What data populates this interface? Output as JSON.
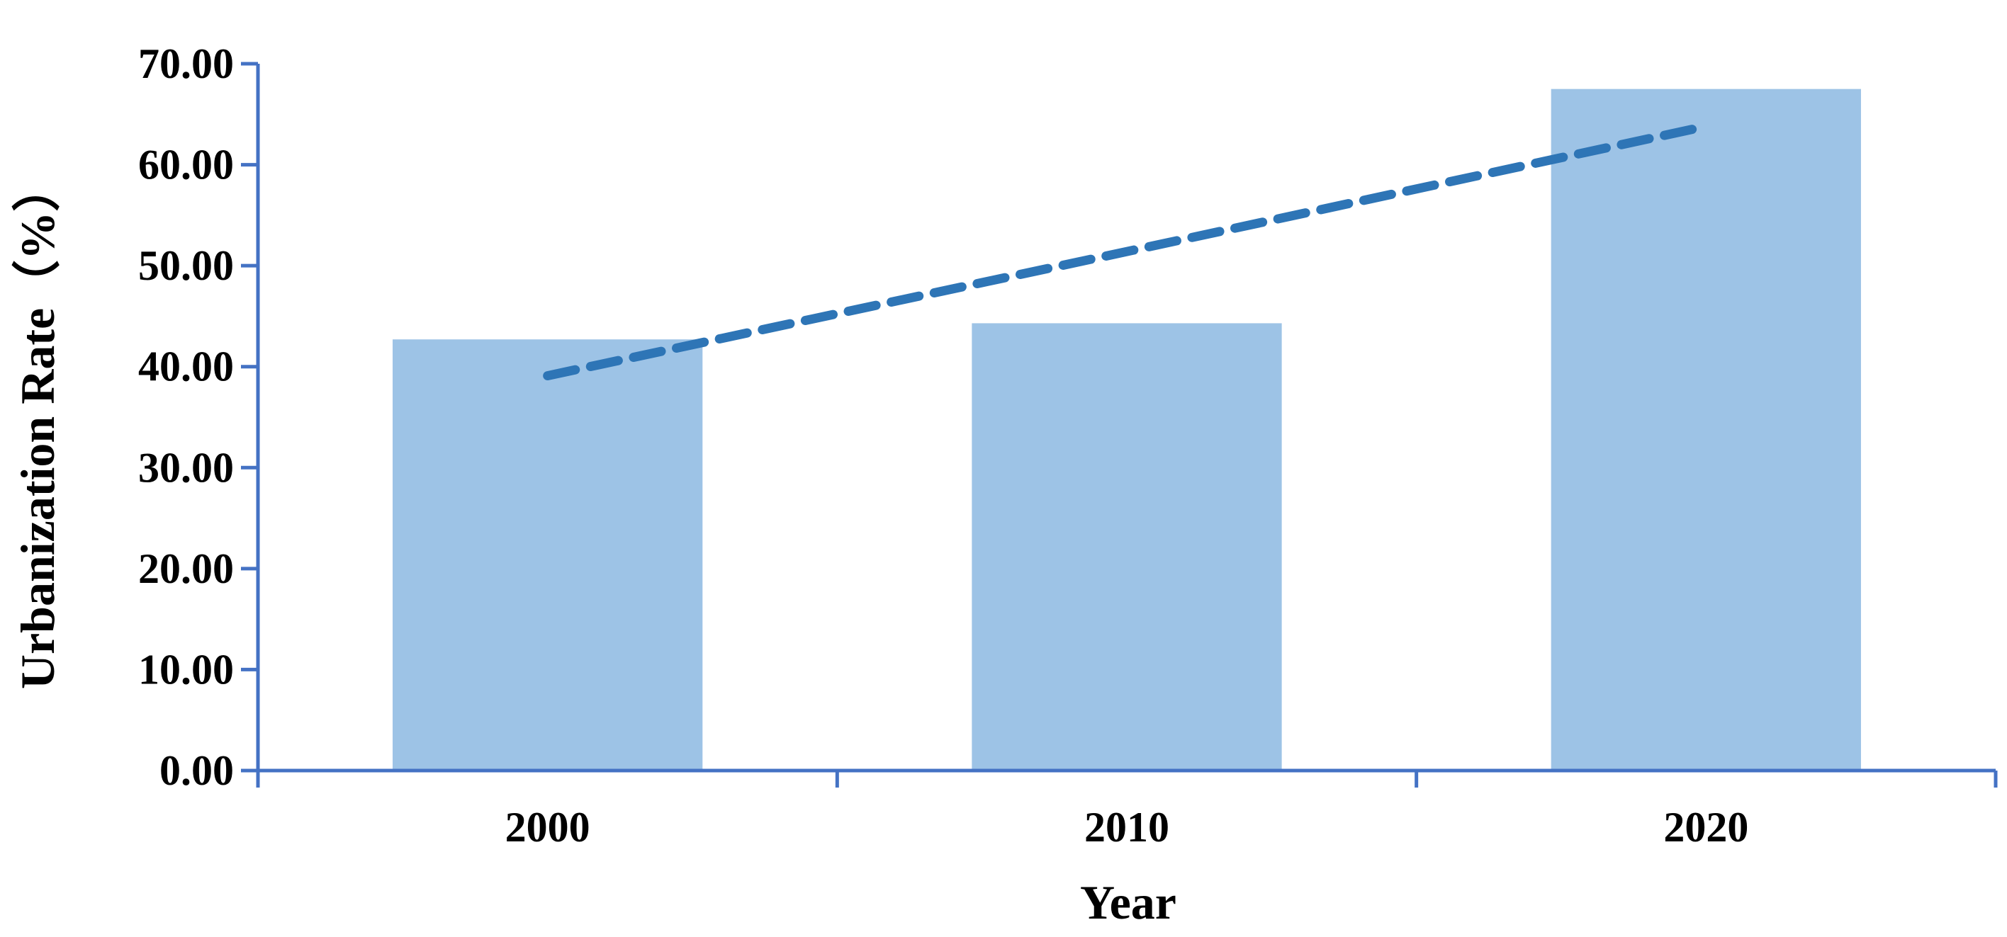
{
  "chart_data": {
    "type": "bar",
    "categories": [
      "2000",
      "2010",
      "2020"
    ],
    "series": [
      {
        "values": [
          42.7,
          44.3,
          67.5
        ]
      }
    ],
    "trendline": {
      "type": "linear",
      "style": "dashed",
      "values": [
        39.1,
        51.4,
        63.8
      ]
    },
    "xlabel": "Year",
    "ylabel": "Urbanization Rate（%）",
    "ylim": [
      0,
      70
    ],
    "yticks": [
      "0.00",
      "10.00",
      "20.00",
      "30.00",
      "40.00",
      "50.00",
      "60.00",
      "70.00"
    ],
    "grid": false,
    "legend": "none"
  },
  "colors": {
    "bar": "#9dc3e6",
    "trendline": "#2e75b6",
    "axis": "#4472c4"
  }
}
